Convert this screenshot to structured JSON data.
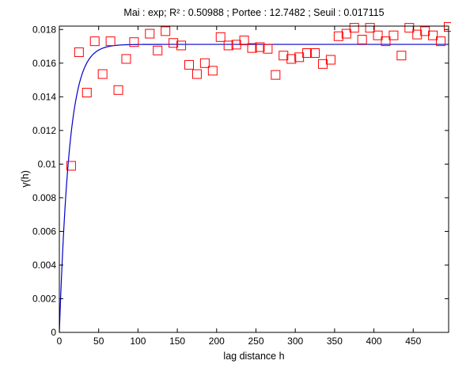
{
  "chart_data": {
    "type": "scatter",
    "title": "Mai : exp;  R² : 0.50988 ; Portee : 12.7482 ; Seuil : 0.017115",
    "xlabel": "lag distance h",
    "ylabel": "γ(h)",
    "xlim": [
      0,
      495
    ],
    "ylim": [
      0,
      0.0182
    ],
    "xticks": [
      "0",
      "50",
      "100",
      "150",
      "200",
      "250",
      "300",
      "350",
      "400",
      "450"
    ],
    "xtick_values": [
      0,
      50,
      100,
      150,
      200,
      250,
      300,
      350,
      400,
      450
    ],
    "yticks": [
      "0",
      "0.002",
      "0.004",
      "0.006",
      "0.008",
      "0.01",
      "0.012",
      "0.014",
      "0.016",
      "0.018"
    ],
    "ytick_values": [
      0,
      0.002,
      0.004,
      0.006,
      0.008,
      0.01,
      0.012,
      0.014,
      0.016,
      0.018
    ],
    "grid": false,
    "series": [
      {
        "kind": "points",
        "marker": "square",
        "color": "#ff0000",
        "x": [
          15,
          25,
          35,
          45,
          55,
          65,
          75,
          85,
          95,
          115,
          125,
          135,
          145,
          155,
          165,
          175,
          185,
          195,
          205,
          215,
          225,
          235,
          245,
          255,
          265,
          275,
          285,
          295,
          305,
          315,
          325,
          335,
          345,
          355,
          365,
          375,
          385,
          395,
          405,
          415,
          425,
          435,
          445,
          455,
          465,
          475,
          485,
          495
        ],
        "y": [
          0.0099,
          0.01665,
          0.01425,
          0.0173,
          0.01535,
          0.0173,
          0.0144,
          0.01625,
          0.01725,
          0.01775,
          0.01675,
          0.0179,
          0.0172,
          0.01705,
          0.0159,
          0.01535,
          0.016,
          0.01555,
          0.01755,
          0.01705,
          0.0171,
          0.01735,
          0.0169,
          0.01695,
          0.01685,
          0.0153,
          0.01645,
          0.01625,
          0.01635,
          0.0166,
          0.0166,
          0.01595,
          0.0162,
          0.0176,
          0.01775,
          0.0181,
          0.0174,
          0.0181,
          0.01765,
          0.0173,
          0.01765,
          0.01645,
          0.0181,
          0.0177,
          0.0179,
          0.01765,
          0.0173,
          0.01815
        ]
      },
      {
        "kind": "model",
        "model": "exponential",
        "color": "#0000cc",
        "sill": 0.017115,
        "range": 12.7482
      }
    ]
  }
}
